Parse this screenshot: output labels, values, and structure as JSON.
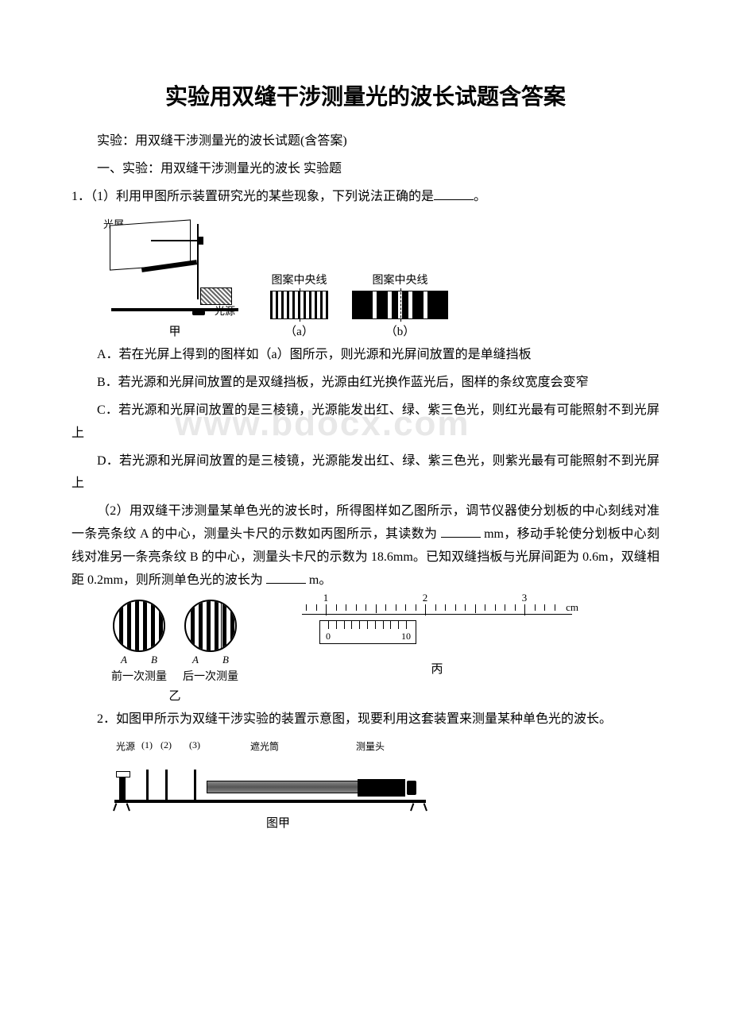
{
  "title": "实验用双缝干涉测量光的波长试题含答案",
  "intro": "实验：用双缝干涉测量光的波长试题(含答案)",
  "section": "一、实验：用双缝干涉测量光的波长 实验题",
  "q1": {
    "stem": "1．（1）利用甲图所示装置研究光的某些现象，下列说法正确的是",
    "stem_end": "。",
    "fig": {
      "screen_label": "光屏",
      "source_label": "光源",
      "cap_jia": "甲",
      "center_label": "图案中央线",
      "cap_a": "（a）",
      "cap_b": "（b）",
      "pattern_a_bars": [
        3,
        4,
        3,
        4,
        3,
        4,
        3,
        4,
        3,
        4,
        3,
        4,
        3,
        4,
        3,
        4,
        3,
        4,
        3,
        4,
        3
      ],
      "pattern_b_bars": [
        26,
        5,
        14,
        5,
        8,
        5,
        8,
        5,
        14,
        5,
        26
      ]
    },
    "optA": "A．若在光屏上得到的图样如（a）图所示，则光源和光屏间放置的是单缝挡板",
    "optB": "B．若光源和光屏间放置的是双缝挡板，光源由红光换作蓝光后，图样的条纹宽度会变窄",
    "optC": "C．若光源和光屏间放置的是三棱镜，光源能发出红、绿、紫三色光，则红光最有可能照射不到光屏上",
    "optD": "D．若光源和光屏间放置的是三棱镜，光源能发出红、绿、紫三色光，则紫光最有可能照射不到光屏上",
    "part2a": "（2）用双缝干涉测量某单色光的波长时，所得图样如乙图所示，调节仪器使分划板的中心刻线对准一条亮条纹 A 的中心，测量头卡尺的示数如丙图所示，其读数为",
    "part2b": "mm，移动手轮使分划板中心刻线对准另一条亮条纹 B 的中心，测量头卡尺的示数为 18.6mm。已知双缝挡板与光屏间距为 0.6m，双缝相距 0.2mm，则所测单色光的波长为",
    "part2c": "m。",
    "fig2": {
      "prev_label": "前一次测量",
      "next_label": "后一次测量",
      "yi": "乙",
      "cm": "cm",
      "v0": "0",
      "v10": "10",
      "n1": "1",
      "n2": "2",
      "n3": "3",
      "bing": "丙",
      "A": "A",
      "B": "B"
    }
  },
  "q2": {
    "stem": "2．如图甲所示为双缝干涉实验的装置示意图，现要利用这套装置来测量某种单色光的波长。",
    "labels": {
      "src": "光源",
      "n1": "(1)",
      "n2": "(2)",
      "n3": "(3)",
      "tube": "遮光筒",
      "head": "测量头"
    },
    "cap": "图甲"
  },
  "watermark": "www.bdocx.com",
  "colors": {
    "text": "#000000",
    "bg": "#ffffff",
    "watermark": "#e8e8e8"
  }
}
